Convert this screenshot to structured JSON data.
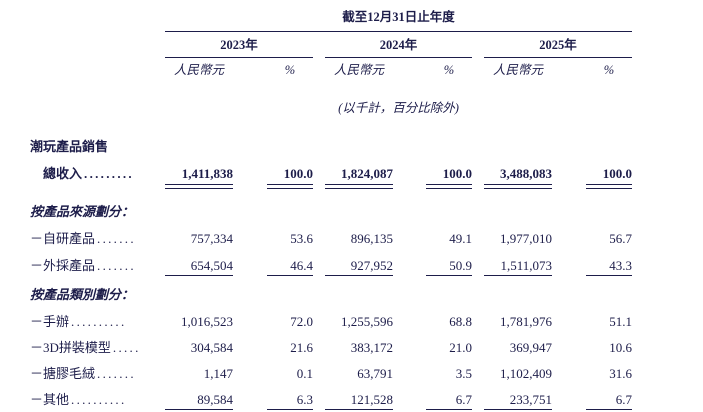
{
  "meta": {
    "ink_color": "#1d1d4a",
    "background_color": "#ffffff",
    "document_type": "financial-table"
  },
  "header": {
    "period": "截至12月31日止年度",
    "years": [
      "2023年",
      "2024年",
      "2025年"
    ],
    "currency": "人民幣元",
    "percent": "%",
    "note": "(以千計，百分比除外)"
  },
  "rows": [
    {
      "type": "section",
      "label": "潮玩產品銷售",
      "leader": "",
      "values": []
    },
    {
      "type": "total",
      "label": "總收入",
      "leader": ".........",
      "values": [
        "1,411,838",
        "100.0",
        "1,824,087",
        "100.0",
        "3,488,083",
        "100.0"
      ]
    },
    {
      "type": "subsection",
      "label": "按產品來源劃分：",
      "leader": "",
      "values": []
    },
    {
      "type": "data",
      "label": "－自研產品",
      "leader": ".......",
      "values": [
        "757,334",
        "53.6",
        "896,135",
        "49.1",
        "1,977,010",
        "56.7"
      ]
    },
    {
      "type": "data-underline",
      "label": "－外採產品",
      "leader": ".......",
      "values": [
        "654,504",
        "46.4",
        "927,952",
        "50.9",
        "1,511,073",
        "43.3"
      ]
    },
    {
      "type": "subsection",
      "label": "按產品類別劃分：",
      "leader": "",
      "values": []
    },
    {
      "type": "data",
      "label": "－手辦",
      "leader": "..........",
      "values": [
        "1,016,523",
        "72.0",
        "1,255,596",
        "68.8",
        "1,781,976",
        "51.1"
      ]
    },
    {
      "type": "data",
      "label": "－3D拼裝模型",
      "leader": ".....",
      "values": [
        "304,584",
        "21.6",
        "383,172",
        "21.0",
        "369,947",
        "10.6"
      ]
    },
    {
      "type": "data",
      "label": "－搪膠毛絨",
      "leader": ".......",
      "values": [
        "1,147",
        "0.1",
        "63,791",
        "3.5",
        "1,102,409",
        "31.6"
      ]
    },
    {
      "type": "data-underline",
      "label": "－其他",
      "leader": "..........",
      "values": [
        "89,584",
        "6.3",
        "121,528",
        "6.7",
        "233,751",
        "6.7"
      ]
    }
  ]
}
